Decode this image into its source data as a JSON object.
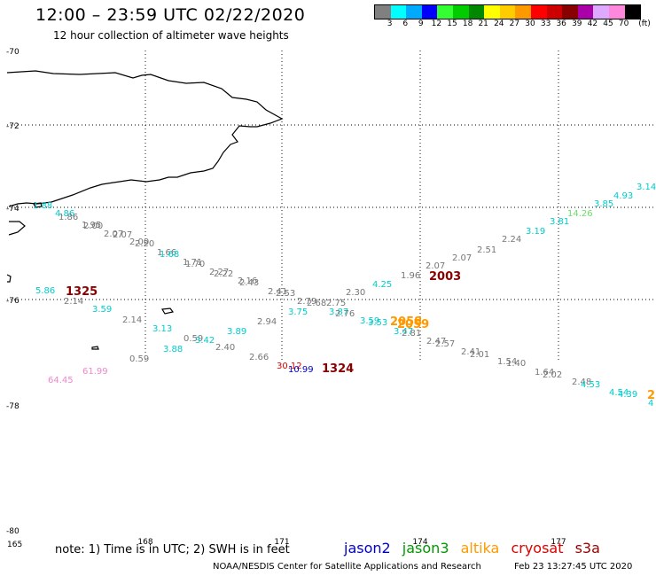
{
  "title": "12:00 – 23:59 UTC 02/22/2020",
  "subtitle": "12 hour collection of altimeter wave heights",
  "legend": {
    "unit": "(ft)",
    "swatches": [
      "#808080",
      "#00ffff",
      "#00aaff",
      "#0000ff",
      "#33ff33",
      "#00cc00",
      "#008800",
      "#ffff00",
      "#ffcc00",
      "#ff9900",
      "#ff0000",
      "#cc0000",
      "#880000",
      "#aa00aa",
      "#ddaaff",
      "#ff88dd",
      "#000000"
    ],
    "labels": [
      "3",
      "6",
      "9",
      "12",
      "15",
      "18",
      "21",
      "24",
      "27",
      "30",
      "33",
      "36",
      "39",
      "42",
      "45",
      "70"
    ]
  },
  "axes": {
    "lat_labels": [
      "-70",
      "-72",
      "-74",
      "-76",
      "-78",
      "-80"
    ],
    "lon_labels": [
      "165",
      "168",
      "171",
      "174",
      "177"
    ]
  },
  "readings": [
    {
      "t": "1.88",
      "c": "#00cccc"
    },
    {
      "t": "4.86",
      "c": "#00cccc"
    },
    {
      "t": "1.86",
      "c": "#777777"
    },
    {
      "t": "1.95",
      "c": "#777777"
    },
    {
      "t": "2.00",
      "c": "#777777"
    },
    {
      "t": "2.07",
      "c": "#777777"
    },
    {
      "t": "2.07",
      "c": "#777777"
    },
    {
      "t": "2.00",
      "c": "#777777"
    },
    {
      "t": "2.20",
      "c": "#777777"
    },
    {
      "t": "1.66",
      "c": "#777777"
    },
    {
      "t": "1.68",
      "c": "#00cccc"
    },
    {
      "t": "1.71",
      "c": "#777777"
    },
    {
      "t": "1.70",
      "c": "#777777"
    },
    {
      "t": "2.27",
      "c": "#777777"
    },
    {
      "t": "2.22",
      "c": "#777777"
    },
    {
      "t": "2.16",
      "c": "#777777"
    },
    {
      "t": "2.43",
      "c": "#777777"
    },
    {
      "t": "2.41",
      "c": "#777777"
    },
    {
      "t": "2.53",
      "c": "#777777"
    },
    {
      "t": "2.79",
      "c": "#777777"
    },
    {
      "t": "2.68",
      "c": "#777777"
    },
    {
      "t": "2.75",
      "c": "#777777"
    },
    {
      "t": "2.30",
      "c": "#777777"
    },
    {
      "t": "4.25",
      "c": "#00cccc"
    },
    {
      "t": "1.96",
      "c": "#777777"
    },
    {
      "t": "2.07",
      "c": "#777777"
    },
    {
      "t": "2.07",
      "c": "#777777"
    },
    {
      "t": "2.51",
      "c": "#777777"
    },
    {
      "t": "2.24",
      "c": "#777777"
    },
    {
      "t": "3.19",
      "c": "#00cccc"
    },
    {
      "t": "3.81",
      "c": "#00cccc"
    },
    {
      "t": "14.26",
      "c": "#66dd66"
    },
    {
      "t": "3.85",
      "c": "#00cccc"
    },
    {
      "t": "4.93",
      "c": "#00cccc"
    },
    {
      "t": "3.14",
      "c": "#00cccc"
    },
    {
      "t": "5.86",
      "c": "#00cccc"
    },
    {
      "t": "2.14",
      "c": "#777777"
    },
    {
      "t": "3.59",
      "c": "#00cccc"
    },
    {
      "t": "2.14",
      "c": "#777777"
    },
    {
      "t": "3.13",
      "c": "#00cccc"
    },
    {
      "t": "0.59",
      "c": "#777777"
    },
    {
      "t": "3.42",
      "c": "#00cccc"
    },
    {
      "t": "3.89",
      "c": "#00cccc"
    },
    {
      "t": "3.88",
      "c": "#00cccc"
    },
    {
      "t": "2.40",
      "c": "#777777"
    },
    {
      "t": "0.59",
      "c": "#777777"
    },
    {
      "t": "2.94",
      "c": "#777777"
    },
    {
      "t": "3.75",
      "c": "#00cccc"
    },
    {
      "t": "3.87",
      "c": "#00cccc"
    },
    {
      "t": "2.76",
      "c": "#777777"
    },
    {
      "t": "3.59",
      "c": "#00cccc"
    },
    {
      "t": "3.53",
      "c": "#00cccc"
    },
    {
      "t": "3.47",
      "c": "#00cccc"
    },
    {
      "t": "2.81",
      "c": "#777777"
    },
    {
      "t": "2.47",
      "c": "#777777"
    },
    {
      "t": "2.57",
      "c": "#777777"
    },
    {
      "t": "2.41",
      "c": "#777777"
    },
    {
      "t": "2.01",
      "c": "#777777"
    },
    {
      "t": "1.54",
      "c": "#777777"
    },
    {
      "t": "1.40",
      "c": "#777777"
    },
    {
      "t": "1.64",
      "c": "#777777"
    },
    {
      "t": "2.02",
      "c": "#777777"
    },
    {
      "t": "2.48",
      "c": "#777777"
    },
    {
      "t": "4.53",
      "c": "#00cccc"
    },
    {
      "t": "4.54",
      "c": "#00cccc"
    },
    {
      "t": "4.39",
      "c": "#00cccc"
    },
    {
      "t": "2.66",
      "c": "#777777"
    },
    {
      "t": "64.45",
      "c": "#ee88cc"
    },
    {
      "t": "61.99",
      "c": "#ee88cc"
    },
    {
      "t": "30.12",
      "c": "#dd0000"
    },
    {
      "t": "10.99",
      "c": "#0000cc"
    },
    {
      "t": "2058",
      "c": "#ff9900"
    },
    {
      "t": "2059",
      "c": "#ff9900"
    },
    {
      "t": "2",
      "c": "#ff9900"
    },
    {
      "t": "4",
      "c": "#00cccc"
    }
  ],
  "times": [
    {
      "t": "1325",
      "c": "#880000"
    },
    {
      "t": "2003",
      "c": "#880000"
    },
    {
      "t": "1324",
      "c": "#880000"
    }
  ],
  "note": "note:  1) Time is in UTC;  2) SWH is in feet",
  "satellites": [
    {
      "name": "jason2",
      "color": "#0000cc"
    },
    {
      "name": "jason3",
      "color": "#009900"
    },
    {
      "name": "altika",
      "color": "#ff9900"
    },
    {
      "name": "cryosat",
      "color": "#dd0000"
    },
    {
      "name": "s3a",
      "color": "#990000"
    }
  ],
  "credit": "NOAA/NESDIS Center for Satellite Applications and Research",
  "timestamp": "Feb 23 13:27:45 UTC 2020"
}
